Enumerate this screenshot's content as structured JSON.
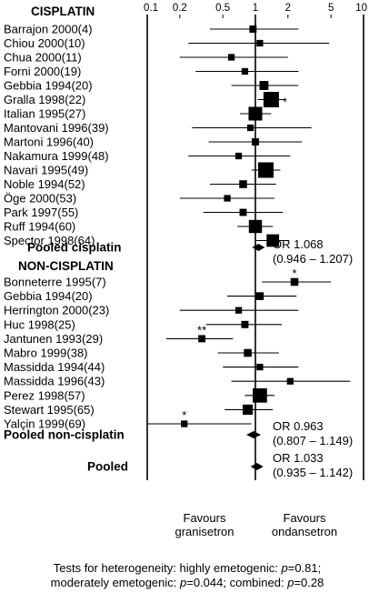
{
  "chart_data": {
    "type": "forest",
    "x_scale": "log",
    "xlim": [
      0.1,
      10
    ],
    "x_ticks": [
      "0.1",
      "0.2",
      "0.5",
      "1",
      "2",
      "5",
      "10"
    ],
    "reference_line": 1,
    "groups": [
      {
        "header": "CISPLATIN",
        "studies": [
          {
            "label": "Barrajon 2000(4)",
            "or": 0.95,
            "lo": 0.38,
            "hi": 2.5,
            "weight": 0.3
          },
          {
            "label": "Chiou 2000(10)",
            "or": 1.1,
            "lo": 0.24,
            "hi": 4.8,
            "weight": 0.25
          },
          {
            "label": "Chua 2000(11)",
            "or": 0.6,
            "lo": 0.2,
            "hi": 2.0,
            "weight": 0.25
          },
          {
            "label": "Forni 2000(19)",
            "or": 0.8,
            "lo": 0.28,
            "hi": 2.5,
            "weight": 0.25
          },
          {
            "label": "Gebbia 1994(20)",
            "or": 1.2,
            "lo": 0.6,
            "hi": 2.5,
            "weight": 0.45
          },
          {
            "label": "Gralla 1998(22)",
            "or": 1.4,
            "lo": 1.05,
            "hi": 1.9,
            "weight": 1.0,
            "mark": "*"
          },
          {
            "label": "Italian 1995(27)",
            "or": 1.0,
            "lo": 0.72,
            "hi": 1.4,
            "weight": 0.85
          },
          {
            "label": "Mantovani 1996(39)",
            "or": 0.9,
            "lo": 0.26,
            "hi": 3.3,
            "weight": 0.25
          },
          {
            "label": "Martoni 1996(40)",
            "or": 1.0,
            "lo": 0.37,
            "hi": 2.7,
            "weight": 0.3
          },
          {
            "label": "Nakamura 1999(48)",
            "or": 0.7,
            "lo": 0.24,
            "hi": 2.1,
            "weight": 0.25
          },
          {
            "label": "Navari 1995(49)",
            "or": 1.25,
            "lo": 0.92,
            "hi": 1.7,
            "weight": 1.0
          },
          {
            "label": "Noble 1994(52)",
            "or": 0.77,
            "lo": 0.38,
            "hi": 1.55,
            "weight": 0.35
          },
          {
            "label": "Öge 2000(53)",
            "or": 0.55,
            "lo": 0.2,
            "hi": 1.5,
            "weight": 0.25
          },
          {
            "label": "Park 1997(55)",
            "or": 0.77,
            "lo": 0.33,
            "hi": 1.8,
            "weight": 0.3
          },
          {
            "label": "Ruff 1994(60)",
            "or": 1.0,
            "lo": 0.68,
            "hi": 1.45,
            "weight": 0.8
          },
          {
            "label": "Spector 1998(64)",
            "or": 1.45,
            "lo": 1.02,
            "hi": 2.05,
            "weight": 0.75
          }
        ],
        "pooled": {
          "label": "Pooled cisplatin",
          "or": 1.068,
          "lo": 0.946,
          "hi": 1.207,
          "or_text": "OR 1.068",
          "ci_text": "(0.946 – 1.207)"
        }
      },
      {
        "header": "NON-CISPLATIN",
        "studies": [
          {
            "label": "Bonneterre 1995(7)",
            "or": 2.3,
            "lo": 1.15,
            "hi": 5.0,
            "weight": 0.35,
            "mark": "*"
          },
          {
            "label": "Gebbia 1994(20)",
            "or": 1.1,
            "lo": 0.55,
            "hi": 2.4,
            "weight": 0.35
          },
          {
            "label": "Herrington 2000(23)",
            "or": 0.7,
            "lo": 0.2,
            "hi": 2.5,
            "weight": 0.25
          },
          {
            "label": "Huc 1998(25)",
            "or": 0.8,
            "lo": 0.35,
            "hi": 1.75,
            "weight": 0.3
          },
          {
            "label": "Jantunen 1993(29)",
            "or": 0.32,
            "lo": 0.15,
            "hi": 0.62,
            "weight": 0.3,
            "mark": "**"
          },
          {
            "label": "Mabro 1999(38)",
            "or": 0.85,
            "lo": 0.45,
            "hi": 1.65,
            "weight": 0.35
          },
          {
            "label": "Massidda 1994(44)",
            "or": 1.1,
            "lo": 0.5,
            "hi": 2.5,
            "weight": 0.25
          },
          {
            "label": "Massidda 1996(43)",
            "or": 2.1,
            "lo": 0.6,
            "hi": 7.5,
            "weight": 0.25
          },
          {
            "label": "Perez 1998(57)",
            "or": 1.1,
            "lo": 0.8,
            "hi": 1.5,
            "weight": 0.9
          },
          {
            "label": "Stewart 1995(65)",
            "or": 0.85,
            "lo": 0.52,
            "hi": 1.45,
            "weight": 0.55
          },
          {
            "label": "Yalçin 1999(69)",
            "or": 0.22,
            "lo": 0.1,
            "hi": 0.92,
            "weight": 0.25,
            "mark": "*"
          }
        ],
        "pooled": {
          "label": "Pooled non-cisplatin",
          "or": 0.963,
          "lo": 0.807,
          "hi": 1.149,
          "or_text": "OR 0.963",
          "ci_text": "(0.807 – 1.149)"
        }
      }
    ],
    "overall": {
      "label": "Pooled",
      "or": 1.033,
      "lo": 0.935,
      "hi": 1.142,
      "or_text": "OR 1.033",
      "ci_text": "(0.935 – 1.142)"
    },
    "favours_left": [
      "Favours",
      "granisetron"
    ],
    "favours_right": [
      "Favours",
      "ondansetron"
    ],
    "footnote": [
      "Tests for heterogeneity: highly emetogenic: p=0.81;",
      "moderately emetogenic: p=0.044; combined: p=0.28"
    ]
  }
}
